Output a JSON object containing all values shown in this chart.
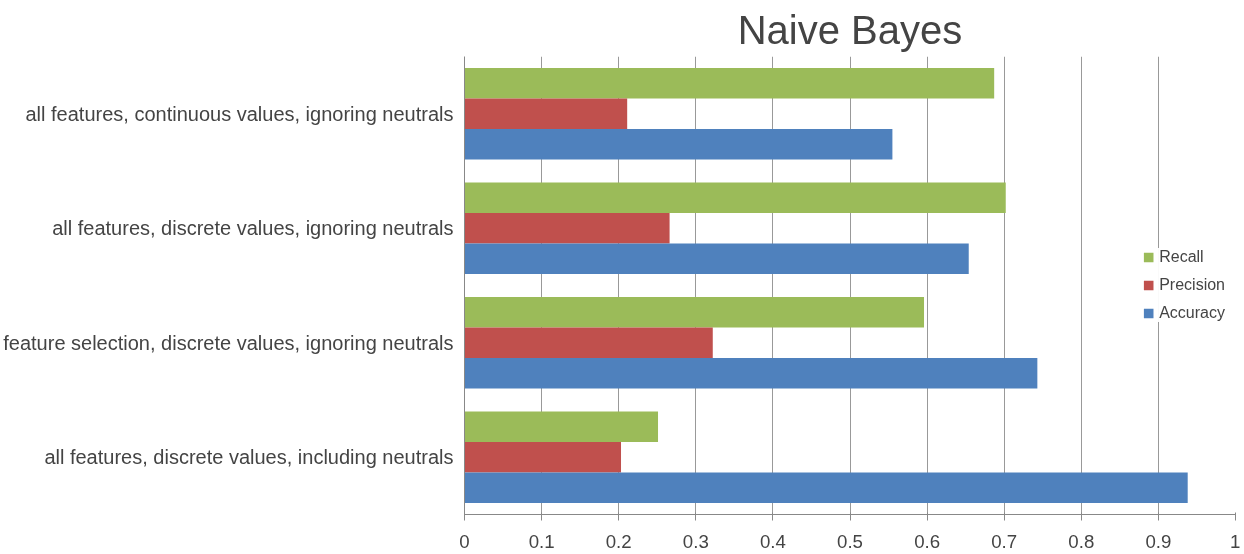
{
  "chart_data": {
    "type": "bar",
    "orientation": "horizontal",
    "title": "Naive Bayes",
    "categories": [
      "all features, continuous values, ignoring neutrals",
      "all features, discrete values, ignoring neutrals",
      "feature selection, discrete values, ignoring neutrals",
      "all features, discrete values, including neutrals"
    ],
    "series": [
      {
        "name": "Recall",
        "color": "#9bbb59",
        "values": [
          0.687,
          0.702,
          0.596,
          0.251
        ]
      },
      {
        "name": "Precision",
        "color": "#c0504d",
        "values": [
          0.211,
          0.266,
          0.322,
          0.203
        ]
      },
      {
        "name": "Accuracy",
        "color": "#4f81bd",
        "values": [
          0.555,
          0.654,
          0.743,
          0.938
        ]
      }
    ],
    "xlim": [
      0,
      1
    ],
    "xticks": [
      0,
      0.1,
      0.2,
      0.3,
      0.4,
      0.5,
      0.6,
      0.7,
      0.8,
      0.9,
      1
    ],
    "grid": "x",
    "legend": "right"
  }
}
